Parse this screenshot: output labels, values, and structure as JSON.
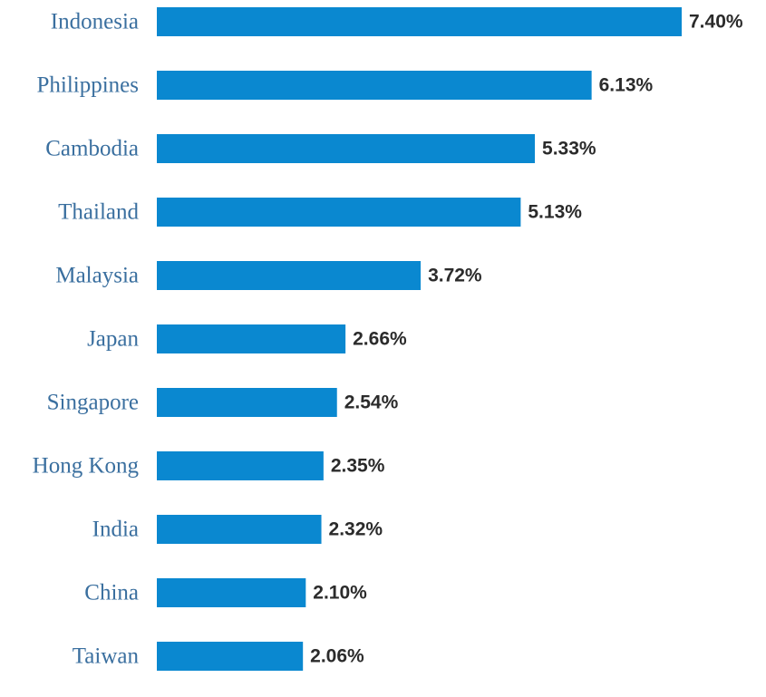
{
  "chart_data": {
    "type": "bar",
    "orientation": "horizontal",
    "categories": [
      "Indonesia",
      "Philippines",
      "Cambodia",
      "Thailand",
      "Malaysia",
      "Japan",
      "Singapore",
      "Hong Kong",
      "India",
      "China",
      "Taiwan"
    ],
    "values": [
      7.4,
      6.13,
      5.33,
      5.13,
      3.72,
      2.66,
      2.54,
      2.35,
      2.32,
      2.1,
      2.06
    ],
    "value_labels": [
      "7.40%",
      "6.13%",
      "5.33%",
      "5.13%",
      "3.72%",
      "2.66%",
      "2.54%",
      "2.35%",
      "2.32%",
      "2.10%",
      "2.06%"
    ],
    "xlim": [
      0,
      7.4
    ],
    "grid": false,
    "legend": "none",
    "title": "",
    "xlabel": "",
    "ylabel": "",
    "colors": {
      "bar": "#0a88d0",
      "category_text": "#3a6f9f",
      "value_text": "#2b2b2b",
      "background": "#ffffff"
    }
  }
}
